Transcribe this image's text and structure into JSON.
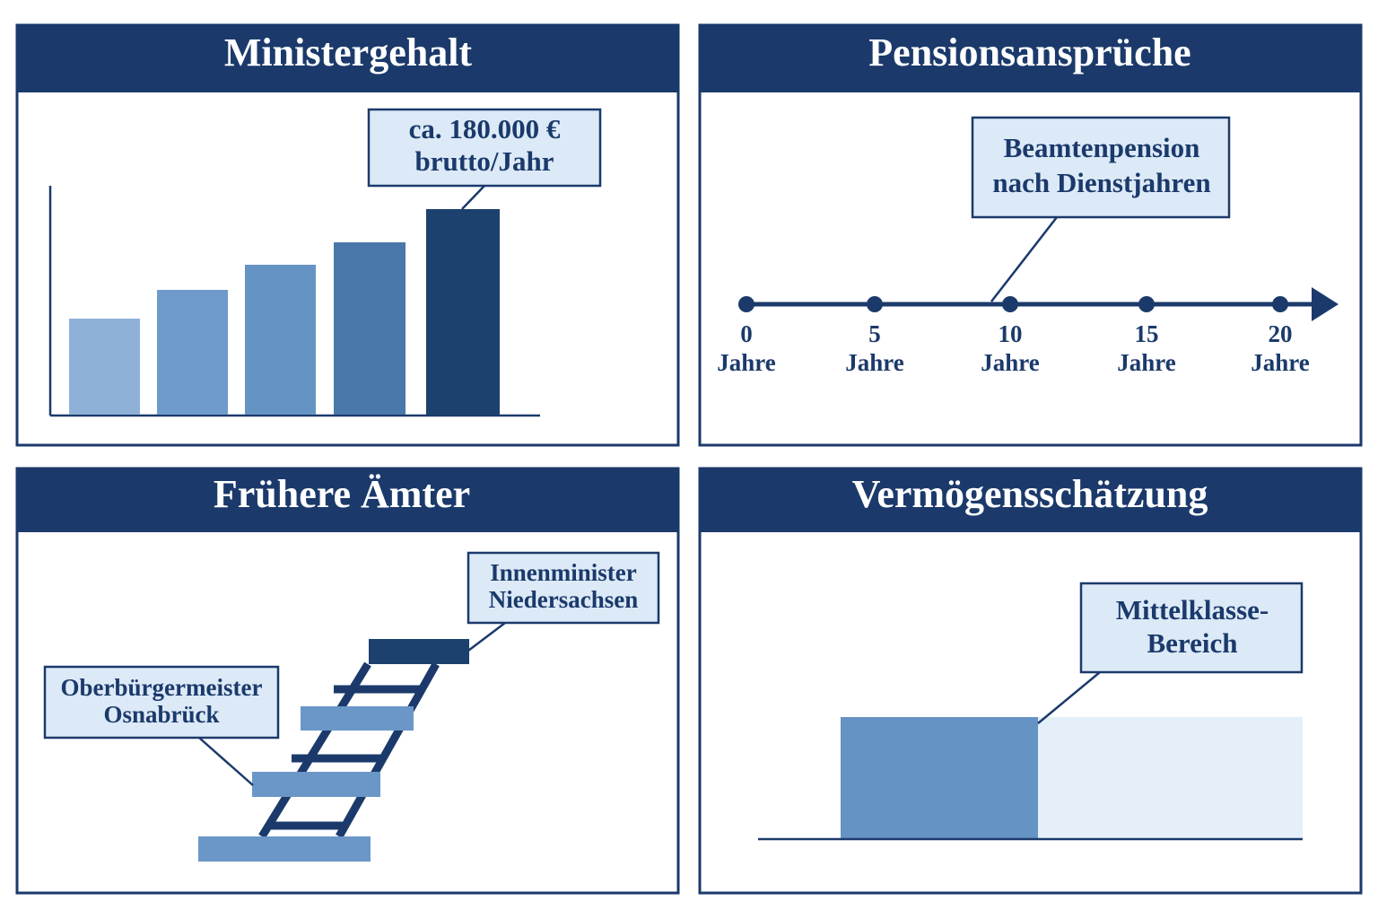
{
  "panels": [
    {
      "title": "Ministergehalt",
      "callout": [
        "ca. 180.000 €",
        "brutto/Jahr"
      ]
    },
    {
      "title": "Pensionsansprüche",
      "callout": [
        "Beamtenpension",
        "nach Dienstjahren"
      ],
      "ticks": [
        [
          "0",
          "Jahre"
        ],
        [
          "5",
          "Jahre"
        ],
        [
          "10",
          "Jahre"
        ],
        [
          "15",
          "Jahre"
        ],
        [
          "20",
          "Jahre"
        ]
      ]
    },
    {
      "title": "Frühere Ämter",
      "callouts": [
        [
          "Innenminister",
          "Niedersachsen"
        ],
        [
          "Oberbürgermeister",
          "Osnabrück"
        ]
      ]
    },
    {
      "title": "Vermögensschätzung",
      "callout": [
        "Mittelklasse-",
        "Bereich"
      ]
    }
  ]
}
